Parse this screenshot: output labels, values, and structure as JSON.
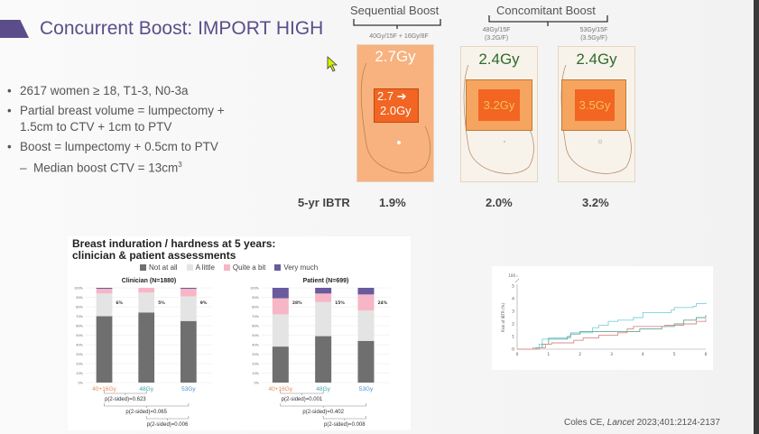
{
  "slide": {
    "title": "Concurrent Boost: IMPORT HIGH",
    "bullets": [
      "2617 women ≥ 18, T1-3, N0-3a",
      "Partial breast volume = lumpectomy + 1.5cm to CTV + 1cm to PTV",
      "Boost = lumpectomy + 0.5cm to PTV"
    ],
    "sub_bullet": "Median boost CTV = 13cm",
    "sub_bullet_sup": "3",
    "citation_author": "Coles CE, ",
    "citation_journal": "Lancet",
    "citation_ref": " 2023;401:2124-2137"
  },
  "schema": {
    "sequential_label": "Sequential Boost",
    "concomitant_label": "Concomitant Boost",
    "arms": [
      {
        "dose": "40Gy/15F + 16Gy/8F",
        "dose2": "",
        "whole": "2.7Gy",
        "boost_a": "2.7 ➔",
        "boost_b": "2.0Gy",
        "ibtr": "1.9%"
      },
      {
        "dose": "48Gy/15F",
        "dose2": "(3.2G/F)",
        "whole": "2.4Gy",
        "boost_a": "3.2Gy",
        "boost_b": "",
        "ibtr": "2.0%"
      },
      {
        "dose": "53Gy/15F",
        "dose2": "(3.5Gy/F)",
        "whole": "2.4Gy",
        "boost_a": "3.5Gy",
        "boost_b": "",
        "ibtr": "3.2%"
      }
    ],
    "ibtr_label": "5-yr IBTR",
    "colors": {
      "sequential_fill": "#f7b27f",
      "boost_fill": "#f26522",
      "concomitant_fill": "#f8f3ea",
      "green_text": "#2e6b2e"
    }
  },
  "chart_data": [
    {
      "type": "bar",
      "stacked": true,
      "title": "Breast induration / hardness at 5 years: clinician & patient assessments",
      "legend": [
        "Not at all",
        "A little",
        "Quite a bit",
        "Very much"
      ],
      "colors": [
        "#6f6f6f",
        "#e4e4e4",
        "#f7b6c6",
        "#6a5a9e"
      ],
      "panels": [
        {
          "subtitle": "Clinician (N=1880)",
          "categories": [
            "40+16Gy",
            "48Gy",
            "53Gy"
          ],
          "category_colors": [
            "#e8894a",
            "#3aa6b0",
            "#4a8fd0"
          ],
          "series": [
            {
              "name": "Not at all",
              "values": [
                70,
                74,
                65
              ]
            },
            {
              "name": "A little",
              "values": [
                24,
                21,
                26
              ]
            },
            {
              "name": "Quite a bit",
              "values": [
                5,
                5,
                8
              ]
            },
            {
              "name": "Very much",
              "values": [
                1,
                0,
                1
              ]
            }
          ],
          "labels": [
            "6%",
            "5%",
            "9%"
          ],
          "yticks": [
            "0%",
            "10%",
            "20%",
            "30%",
            "40%",
            "50%",
            "60%",
            "70%",
            "80%",
            "90%",
            "100%"
          ],
          "pvalues": [
            "p(2-sided)=0.623",
            "p(2-sided)=0.065",
            "p(2-sided)=0.006"
          ]
        },
        {
          "subtitle": "Patient (N=699)",
          "categories": [
            "40+16Gy",
            "48Gy",
            "53Gy"
          ],
          "category_colors": [
            "#e8894a",
            "#3aa6b0",
            "#4a8fd0"
          ],
          "series": [
            {
              "name": "Not at all",
              "values": [
                38,
                49,
                44
              ]
            },
            {
              "name": "A little",
              "values": [
                34,
                36,
                32
              ]
            },
            {
              "name": "Quite a bit",
              "values": [
                17,
                9,
                17
              ]
            },
            {
              "name": "Very much",
              "values": [
                11,
                6,
                7
              ]
            }
          ],
          "labels": [
            "28%",
            "15%",
            "24%"
          ],
          "yticks": [
            "0%",
            "10%",
            "20%",
            "30%",
            "40%",
            "50%",
            "60%",
            "70%",
            "80%",
            "90%",
            "100%"
          ],
          "pvalues": [
            "p(2-sided)=0.001",
            "p(2-sided)=0.402",
            "p(2-sided)=0.008"
          ]
        }
      ]
    },
    {
      "type": "line",
      "ylabel": "Risk of IBTR (%)",
      "xlim": [
        0,
        6
      ],
      "ylim": [
        0,
        5
      ],
      "y_break_label": "100",
      "xticks": [
        "0",
        "1",
        "2",
        "3",
        "4",
        "5",
        "6"
      ],
      "yticks": [
        "0",
        "1",
        "2",
        "3",
        "4",
        "5"
      ],
      "series": [
        {
          "color": "#7fd0dc",
          "x": [
            0,
            0.5,
            0.7,
            0.8,
            1.0,
            1.6,
            1.7,
            2.4,
            2.6,
            2.9,
            3.2,
            3.7,
            4.0,
            4.9,
            5.0,
            5.6,
            5.7,
            6.0
          ],
          "y": [
            0,
            0.1,
            0.4,
            0.8,
            0.9,
            0.9,
            1.3,
            1.7,
            1.9,
            2.2,
            2.3,
            2.5,
            2.9,
            3.1,
            3.3,
            3.4,
            3.6,
            3.7
          ]
        },
        {
          "color": "#5fa896",
          "x": [
            0,
            0.6,
            0.8,
            1.0,
            1.6,
            1.7,
            2.0,
            3.0,
            3.9,
            4.6,
            5.0,
            5.3,
            5.7,
            6.0
          ],
          "y": [
            0,
            0.1,
            0.4,
            0.8,
            1.0,
            1.2,
            1.4,
            1.4,
            1.6,
            1.8,
            2.0,
            2.3,
            2.5,
            2.7
          ]
        },
        {
          "color": "#d98a8a",
          "x": [
            0,
            0.7,
            0.9,
            1.1,
            1.8,
            2.1,
            2.6,
            3.2,
            3.5,
            3.7,
            4.7,
            5.3,
            5.7,
            6.0
          ],
          "y": [
            0,
            0.1,
            0.4,
            0.5,
            0.7,
            0.9,
            1.1,
            1.3,
            1.6,
            1.8,
            1.9,
            2.0,
            2.2,
            2.4
          ]
        }
      ]
    }
  ]
}
